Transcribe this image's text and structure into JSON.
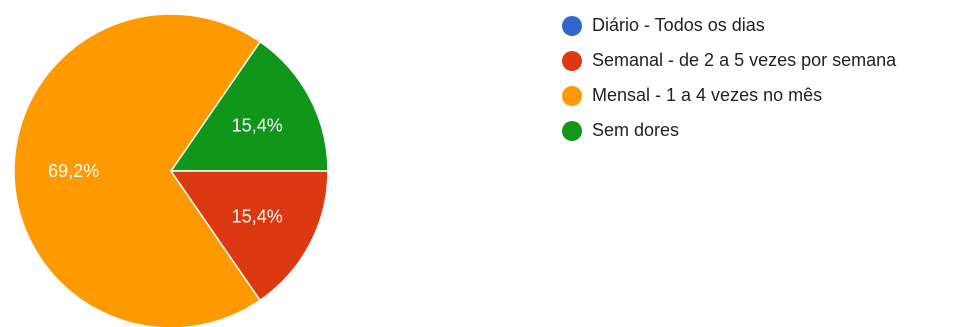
{
  "chart_data": {
    "type": "pie",
    "categories": [
      "Diário - Todos os dias",
      "Semanal - de 2 a 5 vezes por semana",
      "Mensal - 1 a 4 vezes no mês",
      "Sem dores"
    ],
    "values": [
      0,
      15.4,
      69.2,
      15.4
    ],
    "data_labels": [
      "",
      "15,4%",
      "69,2%",
      "15,4%"
    ],
    "colors": [
      "#3366cc",
      "#dc3912",
      "#ff9900",
      "#109618"
    ],
    "legend_position": "right",
    "title": ""
  }
}
